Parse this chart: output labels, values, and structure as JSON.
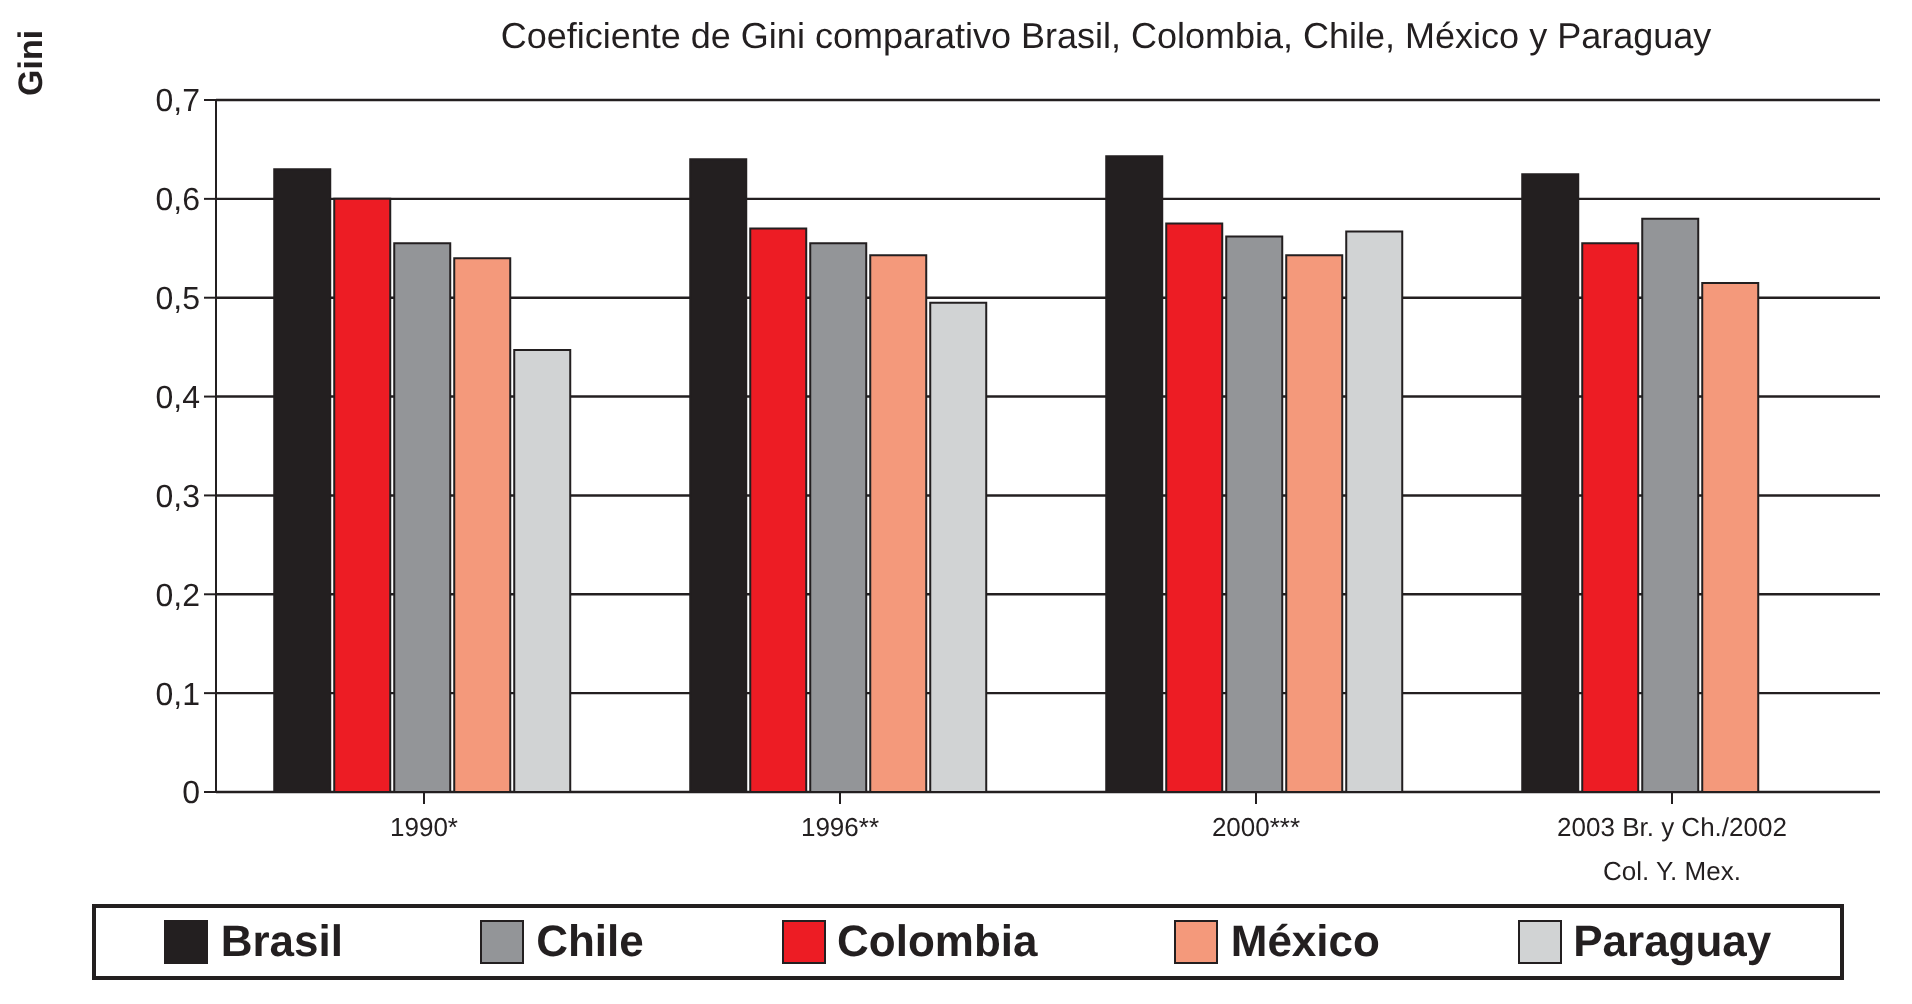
{
  "chart_data": {
    "type": "bar",
    "title": "Coeficiente de Gini comparativo Brasil, Colombia, Chile, México y Paraguay",
    "ylabel": "Gini",
    "categories": [
      "1990*",
      "1996**",
      "2000***",
      "2003 Br. y Ch./2002\nCol. Y. Mex."
    ],
    "series": [
      {
        "name": "Brasil",
        "color": "#231f20",
        "values": [
          0.63,
          0.64,
          0.643,
          0.625
        ]
      },
      {
        "name": "Colombia",
        "color": "#ed1c24",
        "values": [
          0.6,
          0.57,
          0.575,
          0.555
        ]
      },
      {
        "name": "Chile",
        "color": "#939598",
        "values": [
          0.555,
          0.555,
          0.562,
          0.58
        ]
      },
      {
        "name": "México",
        "color": "#f4997b",
        "values": [
          0.54,
          0.543,
          0.543,
          0.515
        ]
      },
      {
        "name": "Paraguay",
        "color": "#d1d3d4",
        "values": [
          0.447,
          0.495,
          0.567,
          null
        ]
      }
    ],
    "ylim": [
      0,
      0.7
    ],
    "yticks": [
      {
        "value": 0,
        "label": "0"
      },
      {
        "value": 0.1,
        "label": "0,1"
      },
      {
        "value": 0.2,
        "label": "0,2"
      },
      {
        "value": 0.3,
        "label": "0,3"
      },
      {
        "value": 0.4,
        "label": "0,4"
      },
      {
        "value": 0.5,
        "label": "0,5"
      },
      {
        "value": 0.6,
        "label": "0,6"
      },
      {
        "value": 0.7,
        "label": "0,7"
      }
    ],
    "grid": "y",
    "legend": "bottom"
  }
}
